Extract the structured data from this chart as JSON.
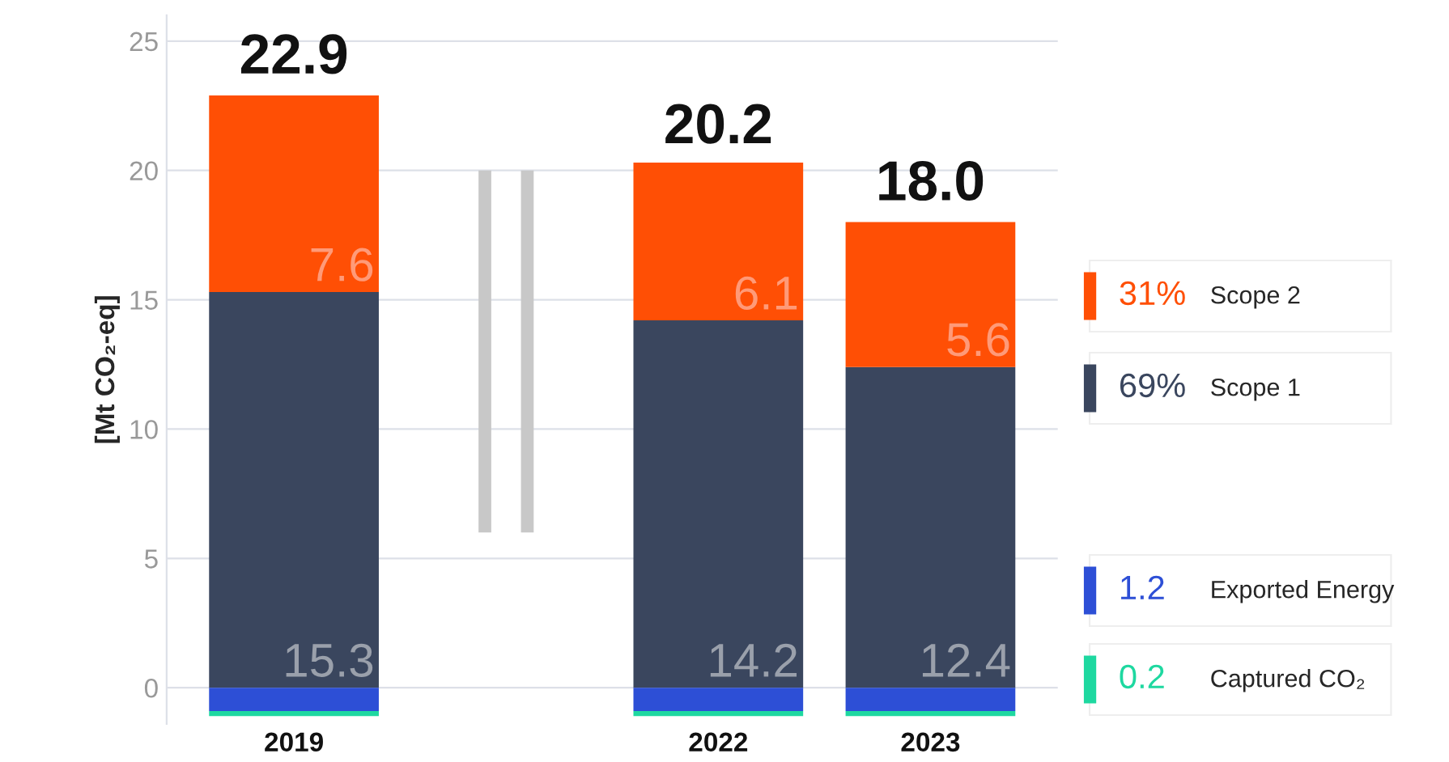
{
  "chart_data": {
    "type": "bar",
    "stacked": true,
    "ylabel": "[Mt CO₂-eq]",
    "categories": [
      "2019",
      null,
      "2022",
      "2023"
    ],
    "series": [
      {
        "name": "Scope 1",
        "color": "#3a465e",
        "values": [
          15.3,
          null,
          14.2,
          12.4
        ],
        "value_labels": [
          "15.3",
          null,
          "14.2",
          "12.4"
        ]
      },
      {
        "name": "Scope 2",
        "color": "#ff4f05",
        "values": [
          7.6,
          null,
          6.1,
          5.6
        ],
        "value_labels": [
          "7.6",
          null,
          "6.1",
          "5.6"
        ]
      },
      {
        "name": "Exported Energy",
        "color": "#2d4fd6",
        "values": [
          -0.9,
          null,
          -0.9,
          -0.9
        ]
      },
      {
        "name": "Captured CO₂",
        "color": "#1ed8a0",
        "values": [
          -0.2,
          null,
          -0.2,
          -0.2
        ]
      }
    ],
    "annotations": [
      "69%",
      "31%",
      "1.2",
      "0.2",
      {
        "text": "22.9",
        "x": "2019",
        "y": 22.9
      },
      {
        "text": "20.2",
        "x": "2022",
        "y": 20.2
      },
      {
        "text": "18.0",
        "x": "2023",
        "y": 18.0
      }
    ],
    "ylim": [
      -1.4,
      26
    ],
    "yticks": [
      0,
      5,
      10,
      15,
      20,
      25
    ],
    "grid": "y",
    "legend": "right"
  }
}
